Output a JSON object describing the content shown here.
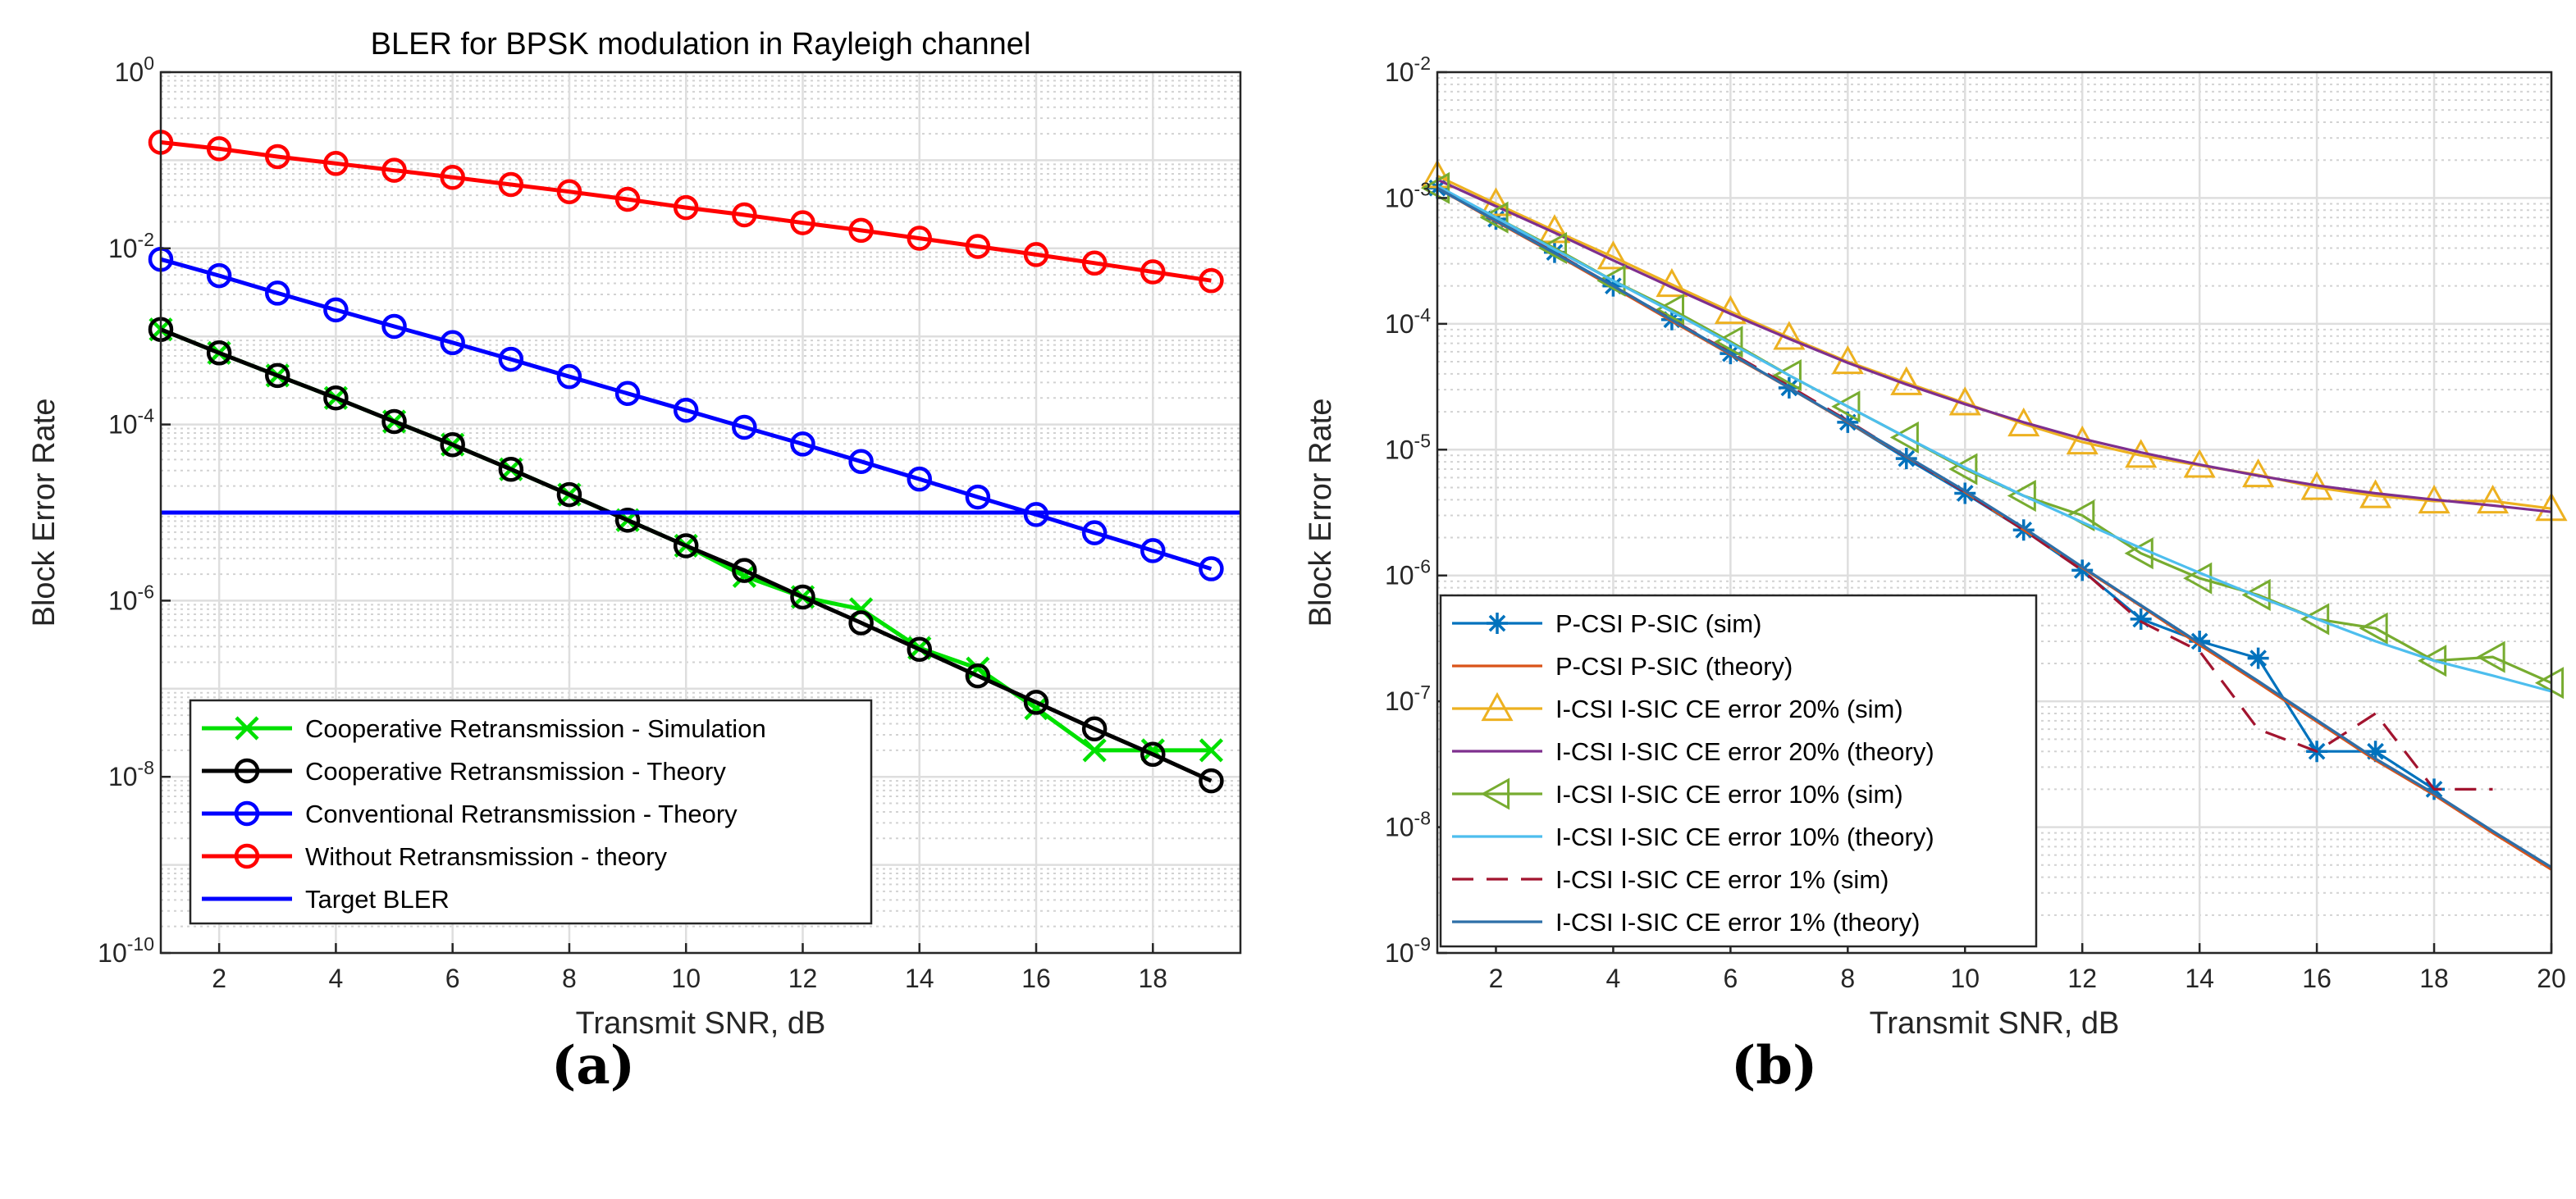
{
  "figure": {
    "caption_a": "(a)",
    "caption_b": "(b)"
  },
  "chart_data": [
    {
      "type": "line",
      "yscale": "log",
      "title": "BLER for BPSK modulation in Rayleigh channel",
      "xlabel": "Transmit SNR, dB",
      "ylabel": "Block Error Rate",
      "xlim": [
        1,
        19.5
      ],
      "ylim_exp": [
        -10,
        0
      ],
      "xticks": [
        2,
        4,
        6,
        8,
        10,
        12,
        14,
        16,
        18
      ],
      "yticks_exp": [
        0,
        -2,
        -4,
        -6,
        -8,
        -10
      ],
      "grid": true,
      "legend_position": "bottom-left",
      "series": [
        {
          "name": "Cooperative Retransmission - Simulation",
          "color": "#00e000",
          "marker": "x",
          "lineStyle": "solid",
          "x": [
            1,
            2,
            3,
            4,
            5,
            6,
            7,
            8,
            9,
            10,
            11,
            12,
            13,
            14,
            15,
            16,
            17,
            18,
            19
          ],
          "y": [
            0.0012,
            0.00065,
            0.00036,
            0.0002,
            0.000108,
            5.9e-05,
            3.1e-05,
            1.6e-05,
            8.2e-06,
            4.2e-06,
            1.9e-06,
            1.1e-06,
            8e-07,
            2.9e-07,
            1.7e-07,
            6e-08,
            2e-08,
            2e-08,
            2e-08
          ]
        },
        {
          "name": "Cooperative Retransmission - Theory",
          "color": "#000000",
          "marker": "o",
          "lineStyle": "solid",
          "x": [
            1,
            2,
            3,
            4,
            5,
            6,
            7,
            8,
            9,
            10,
            11,
            12,
            13,
            14,
            15,
            16,
            17,
            18,
            19
          ],
          "y": [
            0.0012,
            0.00065,
            0.00036,
            0.0002,
            0.000108,
            5.9e-05,
            3.1e-05,
            1.6e-05,
            8.2e-06,
            4.2e-06,
            2.2e-06,
            1.1e-06,
            5.6e-07,
            2.8e-07,
            1.4e-07,
            7e-08,
            3.5e-08,
            1.8e-08,
            9e-09
          ]
        },
        {
          "name": "Conventional Retransmission - Theory",
          "color": "#0000ff",
          "marker": "o",
          "lineStyle": "solid",
          "x": [
            1,
            2,
            3,
            4,
            5,
            6,
            7,
            8,
            9,
            10,
            11,
            12,
            13,
            14,
            15,
            16,
            17,
            18,
            19
          ],
          "y": [
            0.0075,
            0.0049,
            0.0031,
            0.002,
            0.0013,
            0.00085,
            0.00055,
            0.00035,
            0.000225,
            0.000145,
            9.3e-05,
            6e-05,
            3.8e-05,
            2.4e-05,
            1.5e-05,
            9.5e-06,
            5.9e-06,
            3.7e-06,
            2.3e-06
          ]
        },
        {
          "name": "Without Retransmission - theory",
          "color": "#ff0000",
          "marker": "o",
          "lineStyle": "solid",
          "x": [
            1,
            2,
            3,
            4,
            5,
            6,
            7,
            8,
            9,
            10,
            11,
            12,
            13,
            14,
            15,
            16,
            17,
            18,
            19
          ],
          "y": [
            0.16,
            0.135,
            0.11,
            0.092,
            0.077,
            0.064,
            0.053,
            0.044,
            0.036,
            0.029,
            0.024,
            0.0195,
            0.016,
            0.013,
            0.0105,
            0.0085,
            0.0068,
            0.0054,
            0.0043
          ]
        },
        {
          "name": "Target BLER",
          "color": "#0000ff",
          "marker": "none",
          "lineStyle": "solid",
          "x": [
            1,
            19.5
          ],
          "y": [
            1e-05,
            1e-05
          ]
        }
      ]
    },
    {
      "type": "line",
      "yscale": "log",
      "title": "",
      "xlabel": "Transmit SNR, dB",
      "ylabel": "Block Error Rate",
      "xlim": [
        1,
        20
      ],
      "ylim_exp": [
        -9,
        -2
      ],
      "xticks": [
        2,
        4,
        6,
        8,
        10,
        12,
        14,
        16,
        18,
        20
      ],
      "yticks_exp": [
        -2,
        -3,
        -4,
        -5,
        -6,
        -7,
        -8,
        -9
      ],
      "grid": true,
      "legend_position": "bottom-left",
      "series": [
        {
          "name": "P-CSI P-SIC (sim)",
          "color": "#0072bd",
          "marker": "star",
          "lineStyle": "solid",
          "x": [
            1,
            2,
            3,
            4,
            5,
            6,
            7,
            8,
            9,
            10,
            11,
            12,
            13,
            14,
            15,
            16,
            17,
            18
          ],
          "y": [
            0.0012,
            0.00068,
            0.00037,
            0.0002,
            0.000108,
            5.8e-05,
            3.1e-05,
            1.65e-05,
            8.5e-06,
            4.5e-06,
            2.3e-06,
            1.1e-06,
            4.5e-07,
            3e-07,
            2.2e-07,
            4e-08,
            4e-08,
            2e-08
          ]
        },
        {
          "name": "P-CSI P-SIC (theory)",
          "color": "#d95319",
          "marker": "none",
          "lineStyle": "solid",
          "x": [
            1,
            2,
            3,
            4,
            5,
            6,
            7,
            8,
            9,
            10,
            11,
            12,
            13,
            14,
            15,
            16,
            17,
            18,
            19,
            20
          ],
          "y": [
            0.0012,
            0.00065,
            0.00036,
            0.000195,
            0.000105,
            5.7e-05,
            3.1e-05,
            1.65e-05,
            8.8e-06,
            4.6e-06,
            2.3e-06,
            1.15e-06,
            5.7e-07,
            2.8e-07,
            1.4e-07,
            6.9e-08,
            3.4e-08,
            1.8e-08,
            9e-09,
            4.6e-09
          ]
        },
        {
          "name": "I-CSI I-SIC CE error 20% (sim)",
          "color": "#edb120",
          "marker": "triangle-up",
          "lineStyle": "solid",
          "x": [
            1,
            2,
            3,
            4,
            5,
            6,
            7,
            8,
            9,
            10,
            11,
            12,
            13,
            14,
            15,
            16,
            17,
            18,
            19,
            20
          ],
          "y": [
            0.0015,
            0.0009,
            0.00055,
            0.00034,
            0.000205,
            0.000125,
            7.8e-05,
            5e-05,
            3.4e-05,
            2.35e-05,
            1.6e-05,
            1.15e-05,
            9e-06,
            7.5e-06,
            6.3e-06,
            5e-06,
            4.3e-06,
            3.9e-06,
            3.9e-06,
            3.4e-06
          ]
        },
        {
          "name": "I-CSI I-SIC CE error 20% (theory)",
          "color": "#7e2f8e",
          "marker": "none",
          "lineStyle": "solid",
          "x": [
            1,
            2,
            3,
            4,
            5,
            6,
            7,
            8,
            9,
            10,
            11,
            12,
            13,
            14,
            15,
            16,
            17,
            18,
            19,
            20
          ],
          "y": [
            0.0014,
            0.00086,
            0.00053,
            0.00032,
            0.000195,
            0.00012,
            7.6e-05,
            4.9e-05,
            3.3e-05,
            2.3e-05,
            1.65e-05,
            1.22e-05,
            9.5e-06,
            7.6e-06,
            6.2e-06,
            5.2e-06,
            4.5e-06,
            4e-06,
            3.6e-06,
            3.2e-06
          ]
        },
        {
          "name": "I-CSI I-SIC CE error 10% (sim)",
          "color": "#77ac30",
          "marker": "triangle-left",
          "lineStyle": "solid",
          "x": [
            1,
            2,
            3,
            4,
            5,
            6,
            7,
            8,
            9,
            10,
            11,
            12,
            13,
            14,
            15,
            16,
            17,
            18,
            19,
            20
          ],
          "y": [
            0.0012,
            0.0007,
            0.0004,
            0.00022,
            0.00013,
            7.2e-05,
            3.9e-05,
            2.2e-05,
            1.25e-05,
            7e-06,
            4.3e-06,
            3e-06,
            1.5e-06,
            9.5e-07,
            7e-07,
            4.5e-07,
            3.8e-07,
            2.1e-07,
            2.25e-07,
            1.4e-07
          ]
        },
        {
          "name": "I-CSI I-SIC CE error 10% (theory)",
          "color": "#4dbeee",
          "marker": "none",
          "lineStyle": "solid",
          "x": [
            1,
            2,
            3,
            4,
            5,
            6,
            7,
            8,
            9,
            10,
            11,
            12,
            13,
            14,
            15,
            16,
            17,
            18,
            19,
            20
          ],
          "y": [
            0.00125,
            0.0007,
            0.00039,
            0.00022,
            0.000125,
            7e-05,
            3.9e-05,
            2.2e-05,
            1.25e-05,
            7.2e-06,
            4.3e-06,
            2.65e-06,
            1.65e-06,
            1.05e-06,
            6.8e-07,
            4.5e-07,
            3e-07,
            2.1e-07,
            1.6e-07,
            1.2e-07
          ]
        },
        {
          "name": "I-CSI I-SIC CE error 1% (sim)",
          "color": "#a2142f",
          "marker": "none",
          "lineStyle": "dashed",
          "x": [
            1,
            2,
            3,
            4,
            5,
            6,
            7,
            8,
            9,
            10,
            11,
            12,
            13,
            14,
            15,
            16,
            17,
            18,
            19
          ],
          "y": [
            0.0012,
            0.00066,
            0.00037,
            0.0002,
            0.000108,
            5.9e-05,
            3.2e-05,
            1.7e-05,
            8.8e-06,
            4.6e-06,
            2.3e-06,
            1.1e-06,
            4.3e-07,
            2.5e-07,
            6e-08,
            4e-08,
            8e-08,
            2e-08,
            2e-08
          ]
        },
        {
          "name": "I-CSI I-SIC CE error 1% (theory)",
          "color": "#2d6fa8",
          "marker": "none",
          "lineStyle": "solid",
          "x": [
            1,
            2,
            3,
            4,
            5,
            6,
            7,
            8,
            9,
            10,
            11,
            12,
            13,
            14,
            15,
            16,
            17,
            18,
            19,
            20
          ],
          "y": [
            0.0012,
            0.00066,
            0.000365,
            0.0002,
            0.000107,
            5.8e-05,
            3.1e-05,
            1.67e-05,
            8.9e-06,
            4.7e-06,
            2.4e-06,
            1.17e-06,
            5.8e-07,
            2.9e-07,
            1.45e-07,
            7.1e-08,
            3.5e-08,
            1.85e-08,
            9.3e-09,
            4.8e-09
          ]
        }
      ]
    }
  ]
}
